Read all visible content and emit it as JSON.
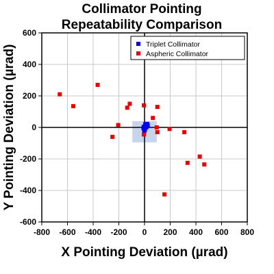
{
  "chart_data": {
    "type": "scatter",
    "title": [
      "Collimator Pointing",
      "Repeatability Comparison"
    ],
    "xlabel": "X Pointing Deviation (µrad)",
    "ylabel": "Y Pointing Deviation (µrad)",
    "xlim": [
      -800,
      800
    ],
    "ylim": [
      -600,
      600
    ],
    "xticks": [
      -800,
      -600,
      -400,
      -200,
      0,
      200,
      400,
      600,
      800
    ],
    "yticks": [
      -600,
      -400,
      -200,
      0,
      200,
      400,
      600
    ],
    "grid": true,
    "legend_position": "top-right",
    "highlight_region": {
      "x": [
        -95,
        95
      ],
      "y": [
        -95,
        40
      ],
      "color": "#c6d4ec"
    },
    "series": [
      {
        "name": "Triplet Collimator",
        "color": "#0000ff",
        "points": [
          [
            5,
            20
          ],
          [
            12,
            18
          ],
          [
            20,
            15
          ],
          [
            25,
            12
          ],
          [
            15,
            8
          ],
          [
            8,
            3
          ],
          [
            -5,
            0
          ],
          [
            -8,
            -5
          ],
          [
            0,
            -8
          ],
          [
            -3,
            -12
          ],
          [
            2,
            -15
          ],
          [
            -6,
            4
          ],
          [
            10,
            -2
          ],
          [
            18,
            5
          ],
          [
            22,
            22
          ],
          [
            -2,
            -25
          ]
        ]
      },
      {
        "name": "Aspheric Collimator",
        "color": "#ee0000",
        "points": [
          [
            -660,
            210
          ],
          [
            -555,
            135
          ],
          [
            -365,
            270
          ],
          [
            -115,
            150
          ],
          [
            -135,
            125
          ],
          [
            -205,
            15
          ],
          [
            -250,
            -60
          ],
          [
            -5,
            140
          ],
          [
            100,
            130
          ],
          [
            65,
            60
          ],
          [
            95,
            0
          ],
          [
            100,
            -30
          ],
          [
            195,
            -10
          ],
          [
            310,
            -30
          ],
          [
            430,
            -185
          ],
          [
            335,
            -225
          ],
          [
            465,
            -235
          ],
          [
            155,
            -425
          ],
          [
            -5,
            -45
          ]
        ]
      }
    ]
  }
}
